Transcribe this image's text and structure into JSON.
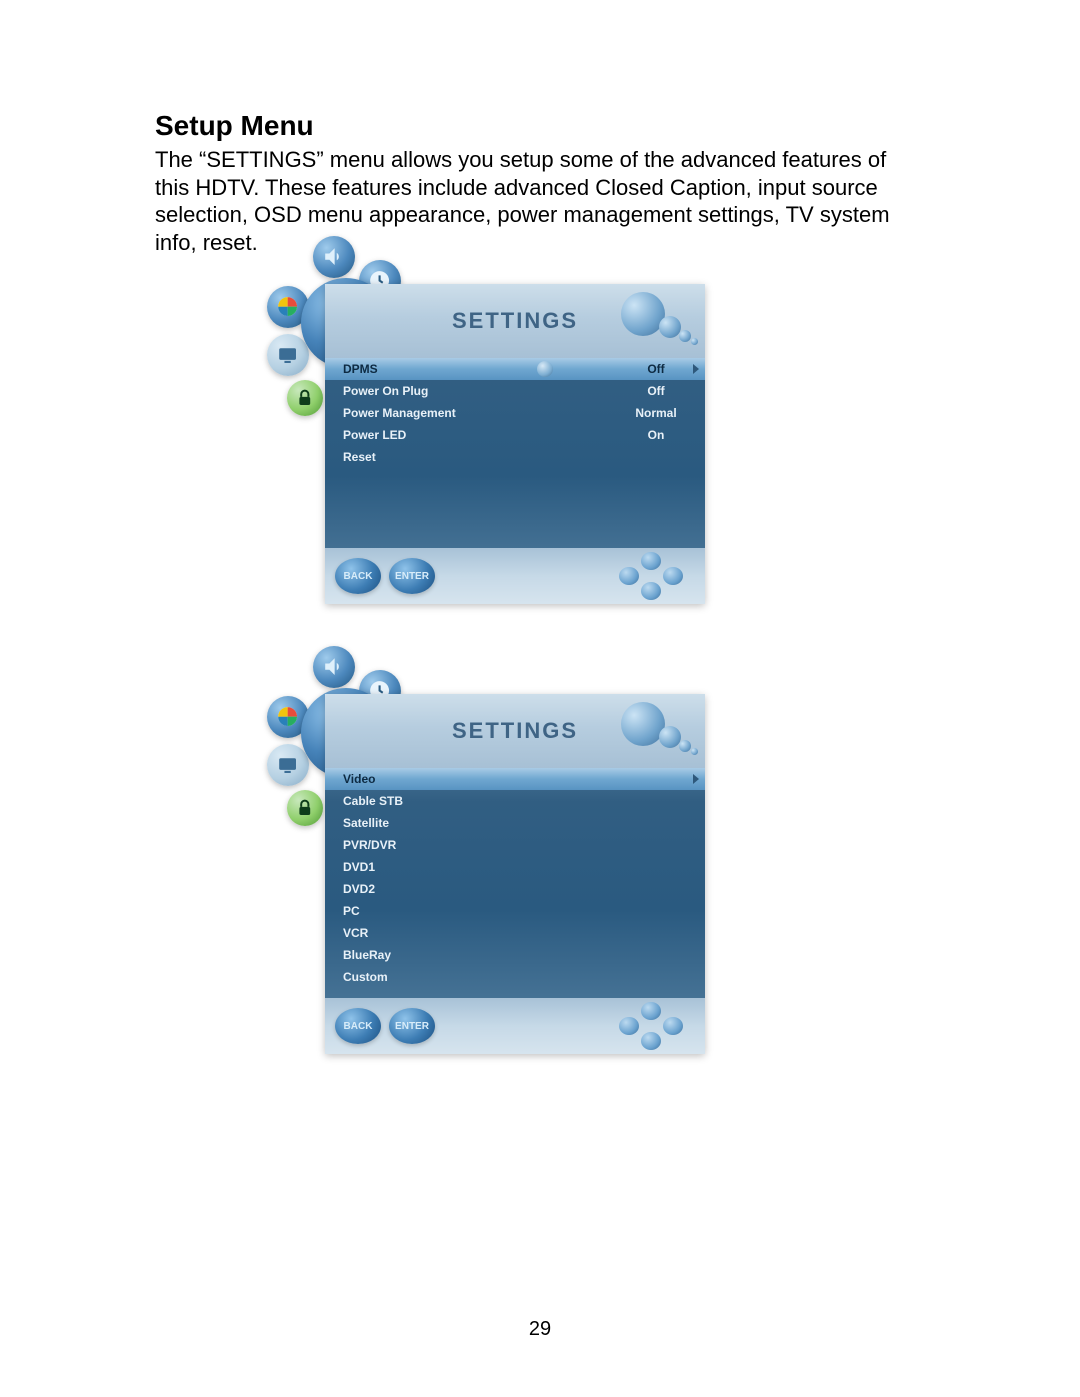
{
  "page": {
    "heading": "Setup Menu",
    "body": "The “SETTINGS” menu allows you setup some of the advanced features of this HDTV. These features include advanced Closed Caption, input source selection, OSD menu appearance, power management settings, TV system info, reset.",
    "page_number": "29"
  },
  "colors": {
    "page_bg": "#ffffff",
    "text": "#000000",
    "osd_title": "#3f6485",
    "osd_gradient_top": "#cddeea",
    "osd_gradient_mid": "#315e82",
    "osd_gradient_bot": "#9fbcd2",
    "row_text": "#e8f1f8",
    "selected_bg_top": "#a9cbe6",
    "selected_bg_bot": "#5893c2",
    "selected_text": "#0d2a42",
    "button_blue": "#3d7db4",
    "lock_green": "#8fcf6b"
  },
  "osd_common": {
    "title": "SETTINGS",
    "back_label": "BACK",
    "enter_label": "ENTER"
  },
  "screenshot1": {
    "rows": [
      {
        "label": "DPMS",
        "value": "Off",
        "selected": true
      },
      {
        "label": "Power On Plug",
        "value": "Off",
        "selected": false
      },
      {
        "label": "Power Management",
        "value": "Normal",
        "selected": false
      },
      {
        "label": "Power LED",
        "value": "On",
        "selected": false
      },
      {
        "label": "Reset",
        "value": "",
        "selected": false
      }
    ]
  },
  "screenshot2": {
    "rows": [
      {
        "label": "Video",
        "selected": true
      },
      {
        "label": "Cable STB",
        "selected": false
      },
      {
        "label": "Satellite",
        "selected": false
      },
      {
        "label": "PVR/DVR",
        "selected": false
      },
      {
        "label": "DVD1",
        "selected": false
      },
      {
        "label": "DVD2",
        "selected": false
      },
      {
        "label": "PC",
        "selected": false
      },
      {
        "label": "VCR",
        "selected": false
      },
      {
        "label": "BlueRay",
        "selected": false
      },
      {
        "label": "Custom",
        "selected": false
      }
    ]
  }
}
